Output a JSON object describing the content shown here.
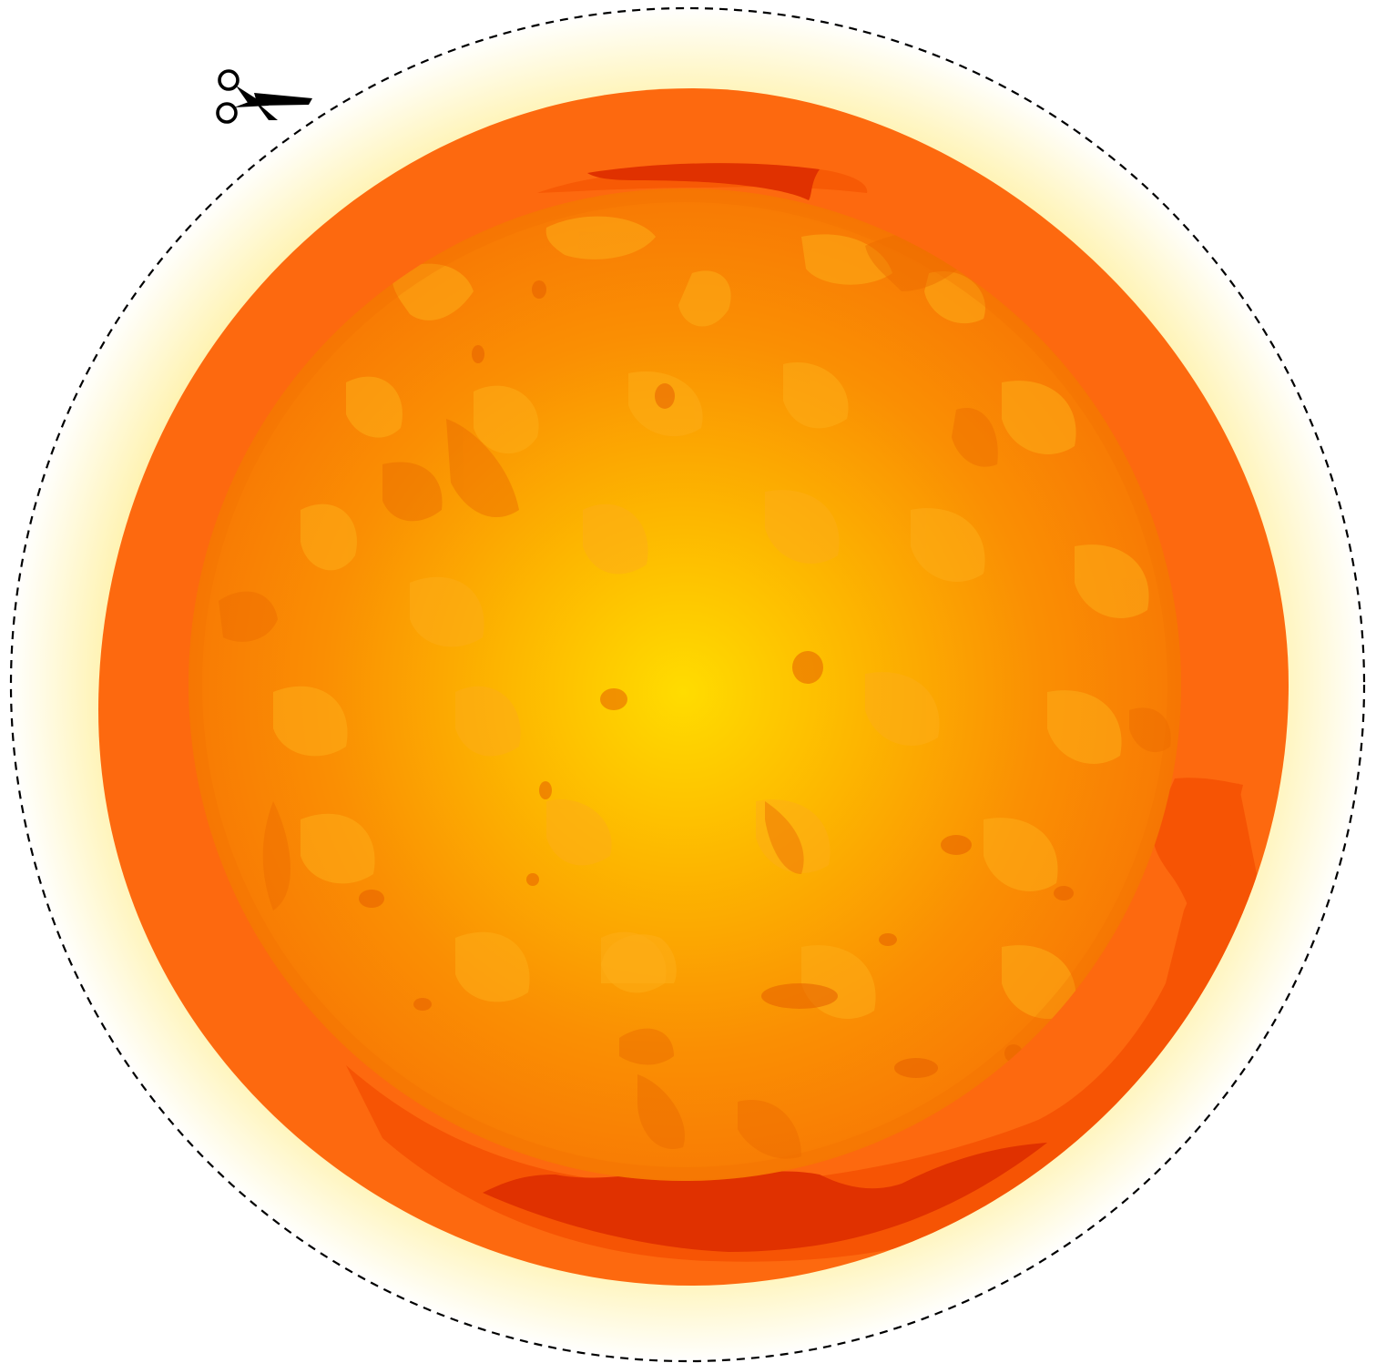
{
  "image": {
    "subject": "sun",
    "icons": [
      "scissors-icon"
    ],
    "colors": {
      "background": "#ffffff",
      "cut_line": "#000000",
      "halo_inner": "#fff4b0",
      "halo_outer": "#fffdf0",
      "rim": "#fd690f",
      "core_center": "#ffdc00",
      "core_mid": "#fca203",
      "core_edge": "#f97a05",
      "spots_light": "#fdb316",
      "spots_dark": "#e86a00",
      "flare_red": "#e03100"
    },
    "cut_line_style": "dashed"
  }
}
